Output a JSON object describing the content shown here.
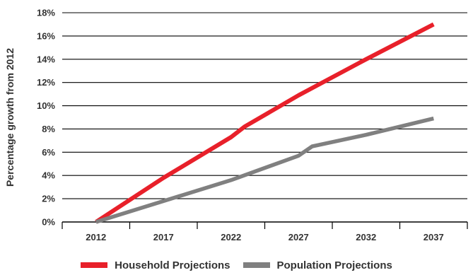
{
  "chart_data": {
    "type": "line",
    "title": "",
    "xlabel": "",
    "ylabel": "Percentage growth from 2012",
    "categories": [
      "2012",
      "2017",
      "2022",
      "2027",
      "2032",
      "2037"
    ],
    "xlim": [
      2009.5,
      2039.5
    ],
    "ylim": [
      0,
      18
    ],
    "y_ticks": [
      0,
      2,
      4,
      6,
      8,
      10,
      12,
      14,
      16,
      18
    ],
    "y_tick_labels": [
      "0%",
      "2%",
      "4%",
      "6%",
      "8%",
      "10%",
      "12%",
      "14%",
      "16%",
      "18%"
    ],
    "grid": "horizontal",
    "legend_position": "bottom",
    "series": [
      {
        "name": "Household Projections",
        "color": "#e8202a",
        "points": [
          [
            2012,
            0
          ],
          [
            2017,
            3.8
          ],
          [
            2022,
            7.3
          ],
          [
            2023,
            8.2
          ],
          [
            2027,
            10.9
          ],
          [
            2032,
            14.0
          ],
          [
            2037,
            17.0
          ]
        ]
      },
      {
        "name": "Population Projections",
        "color": "#808080",
        "points": [
          [
            2012,
            0
          ],
          [
            2017,
            1.8
          ],
          [
            2022,
            3.6
          ],
          [
            2027,
            5.7
          ],
          [
            2028,
            6.5
          ],
          [
            2032,
            7.5
          ],
          [
            2037,
            8.9
          ]
        ]
      }
    ]
  }
}
